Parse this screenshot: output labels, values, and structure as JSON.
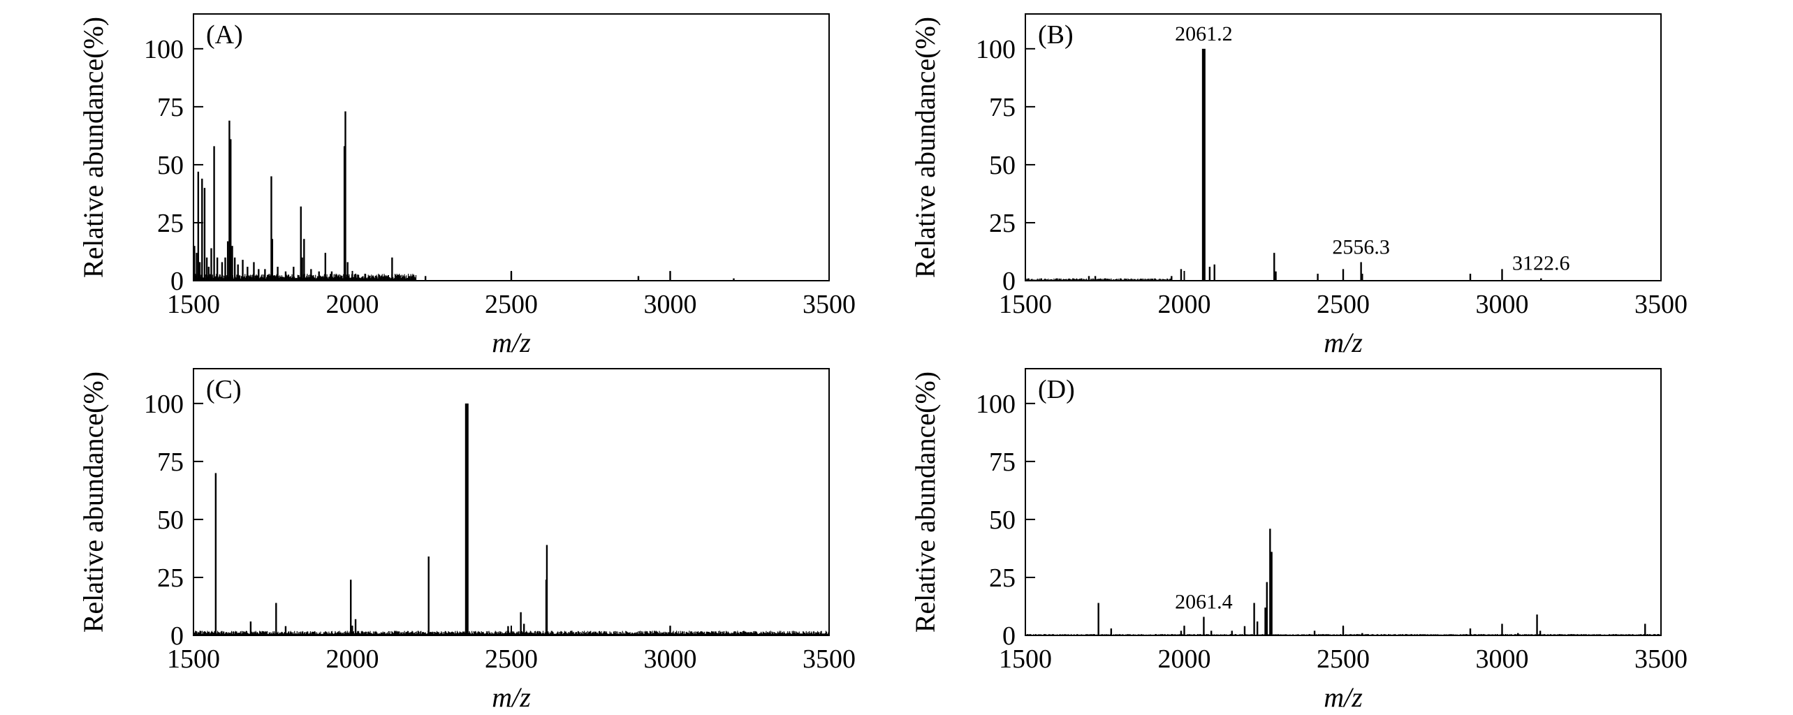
{
  "chart_data": [
    {
      "type": "bar",
      "panel_label": "(A)",
      "xlabel": "m/z",
      "ylabel": "Relative abundance(%)",
      "xlim": [
        1500,
        3500
      ],
      "ylim": [
        0,
        115
      ],
      "xticks": [
        "1500",
        "2000",
        "2500",
        "3000",
        "3500"
      ],
      "yticks": [
        "0",
        "25",
        "50",
        "75",
        "100"
      ],
      "annotations": [],
      "peaks": [
        [
          1503,
          15
        ],
        [
          1510,
          12
        ],
        [
          1515,
          47
        ],
        [
          1520,
          8
        ],
        [
          1527,
          44
        ],
        [
          1535,
          40
        ],
        [
          1542,
          10
        ],
        [
          1548,
          6
        ],
        [
          1556,
          14
        ],
        [
          1565,
          58
        ],
        [
          1575,
          10
        ],
        [
          1590,
          8
        ],
        [
          1600,
          10
        ],
        [
          1608,
          17
        ],
        [
          1613,
          69
        ],
        [
          1617,
          61
        ],
        [
          1622,
          15
        ],
        [
          1630,
          10
        ],
        [
          1640,
          7
        ],
        [
          1655,
          9
        ],
        [
          1670,
          6
        ],
        [
          1690,
          8
        ],
        [
          1705,
          5
        ],
        [
          1725,
          5
        ],
        [
          1745,
          45
        ],
        [
          1748,
          18
        ],
        [
          1765,
          6
        ],
        [
          1790,
          4
        ],
        [
          1815,
          6
        ],
        [
          1838,
          32
        ],
        [
          1842,
          10
        ],
        [
          1848,
          18
        ],
        [
          1870,
          5
        ],
        [
          1895,
          4
        ],
        [
          1915,
          12
        ],
        [
          1935,
          4
        ],
        [
          1975,
          58
        ],
        [
          1978,
          73
        ],
        [
          1985,
          8
        ],
        [
          2010,
          3
        ],
        [
          2040,
          3
        ],
        [
          2090,
          2
        ],
        [
          2125,
          10
        ],
        [
          2180,
          2
        ],
        [
          2230,
          2
        ],
        [
          2500,
          4
        ],
        [
          2900,
          2
        ],
        [
          3000,
          4
        ],
        [
          3200,
          1
        ]
      ],
      "noise": {
        "from": 1500,
        "to": 2200,
        "level": 3
      }
    },
    {
      "type": "bar",
      "panel_label": "(B)",
      "xlabel": "m/z",
      "ylabel": "Relative abundance(%)",
      "xlim": [
        1500,
        3500
      ],
      "ylim": [
        0,
        115
      ],
      "xticks": [
        "1500",
        "2000",
        "2500",
        "3000",
        "3500"
      ],
      "yticks": [
        "0",
        "25",
        "50",
        "75",
        "100"
      ],
      "annotations": [
        {
          "text": "2061.2",
          "x": 2061.2,
          "y": 100
        },
        {
          "text": "2556.3",
          "x": 2556.3,
          "y": 8
        },
        {
          "text": "3122.6",
          "x": 3122.6,
          "y": 1
        }
      ],
      "peaks": [
        [
          1510,
          1
        ],
        [
          1550,
          1
        ],
        [
          1600,
          1
        ],
        [
          1650,
          1
        ],
        [
          1700,
          2
        ],
        [
          1720,
          2
        ],
        [
          1750,
          1
        ],
        [
          1800,
          1
        ],
        [
          1960,
          2
        ],
        [
          1990,
          5
        ],
        [
          2061.2,
          100
        ],
        [
          2080,
          6
        ],
        [
          2095,
          7
        ],
        [
          2283,
          12
        ],
        [
          2288,
          4
        ],
        [
          2420,
          3
        ],
        [
          2500,
          5
        ],
        [
          2556.3,
          8
        ],
        [
          2560,
          3
        ],
        [
          2900,
          3
        ],
        [
          3000,
          5
        ],
        [
          3122.6,
          1
        ]
      ],
      "noise": {
        "from": 1500,
        "to": 1960,
        "level": 1
      }
    },
    {
      "type": "bar",
      "panel_label": "(C)",
      "xlabel": "m/z",
      "ylabel": "Relative abundance(%)",
      "xlim": [
        1500,
        3500
      ],
      "ylim": [
        0,
        115
      ],
      "xticks": [
        "1500",
        "2000",
        "2500",
        "3000",
        "3500"
      ],
      "yticks": [
        "0",
        "25",
        "50",
        "75",
        "100"
      ],
      "annotations": [],
      "peaks": [
        [
          1570,
          70
        ],
        [
          1680,
          6
        ],
        [
          1760,
          14
        ],
        [
          1790,
          4
        ],
        [
          1995,
          24
        ],
        [
          2010,
          7
        ],
        [
          2240,
          34
        ],
        [
          2360,
          100
        ],
        [
          2490,
          4
        ],
        [
          2530,
          10
        ],
        [
          2540,
          5
        ],
        [
          2610,
          24
        ],
        [
          2612,
          39
        ],
        [
          2690,
          2
        ],
        [
          3000,
          4
        ]
      ],
      "noise": {
        "from": 1500,
        "to": 3500,
        "level": 2
      }
    },
    {
      "type": "bar",
      "panel_label": "(D)",
      "xlabel": "m/z",
      "ylabel": "Relative abundance(%)",
      "xlim": [
        1500,
        3500
      ],
      "ylim": [
        0,
        115
      ],
      "xticks": [
        "1500",
        "2000",
        "2500",
        "3000",
        "3500"
      ],
      "yticks": [
        "0",
        "25",
        "50",
        "75",
        "100"
      ],
      "annotations": [
        {
          "text": "2061.4",
          "x": 2061.4,
          "y": 8
        }
      ],
      "peaks": [
        [
          1730,
          14
        ],
        [
          1770,
          3
        ],
        [
          1990,
          2
        ],
        [
          2000,
          4
        ],
        [
          2061.4,
          8
        ],
        [
          2085,
          2
        ],
        [
          2150,
          2
        ],
        [
          2190,
          4
        ],
        [
          2220,
          14
        ],
        [
          2230,
          6
        ],
        [
          2255,
          12
        ],
        [
          2260,
          23
        ],
        [
          2270,
          46
        ],
        [
          2275,
          36
        ],
        [
          2410,
          2
        ],
        [
          2500,
          4
        ],
        [
          2560,
          1
        ],
        [
          2900,
          3
        ],
        [
          3000,
          5
        ],
        [
          3050,
          1
        ],
        [
          3110,
          9
        ],
        [
          3120,
          2
        ],
        [
          3450,
          5
        ]
      ],
      "noise": {
        "from": 1500,
        "to": 3500,
        "level": 0.6
      }
    }
  ]
}
